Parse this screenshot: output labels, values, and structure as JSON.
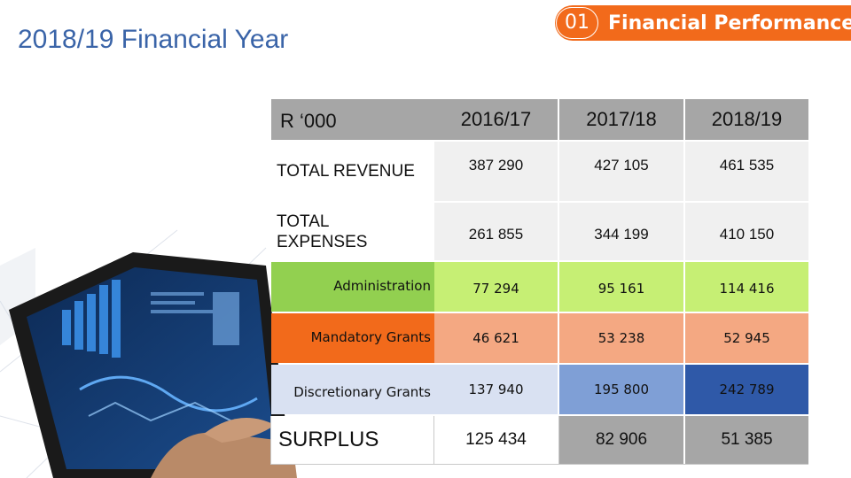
{
  "slide": {
    "title": "2018/19 Financial Year",
    "section_number": "01",
    "section_label": "Financial Performance"
  },
  "colors": {
    "header_gray": "#a6a6a6",
    "light_gray": "#f0f0f0",
    "admin_green": "#92d050",
    "admin_green_light": "#c6ef74",
    "mandatory_orange": "#f26a1b",
    "mandatory_orange_light": "#f4a882",
    "discretionary_blue": "#2f59a8",
    "discretionary_blue_light": "#7f9fd6",
    "discretionary_blue_pale": "#d9e1f2",
    "surplus_gray": "#a6a6a6",
    "accent_orange": "#f26a1b"
  },
  "table": {
    "unit_header": "R ‘000",
    "columns": [
      "2016/17",
      "2017/18",
      "2018/19"
    ],
    "rows": [
      {
        "label": "TOTAL REVENUE",
        "values": [
          "387 290",
          "427 105",
          "461 535"
        ]
      },
      {
        "label": "TOTAL EXPENSES",
        "values": [
          "261 855",
          "344 199",
          "410 150"
        ]
      },
      {
        "label": "Administration",
        "values": [
          "77 294",
          "95 161",
          "114 416"
        ]
      },
      {
        "label": "Mandatory Grants",
        "values": [
          "46 621",
          "53 238",
          "52 945"
        ]
      },
      {
        "label": "Discretionary Grants",
        "values": [
          "137 940",
          "195 800",
          "242 789"
        ]
      },
      {
        "label": "SURPLUS",
        "values": [
          "125 434",
          "82 906",
          "51 385"
        ]
      }
    ]
  }
}
